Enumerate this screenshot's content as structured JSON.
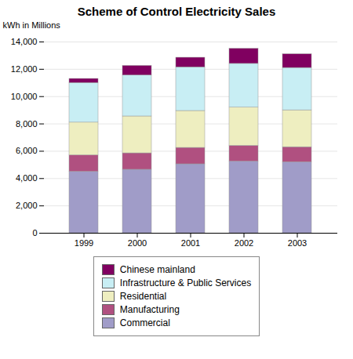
{
  "chart_data": {
    "type": "bar",
    "stacked": true,
    "title": "Scheme of Control Electricity Sales",
    "ylabel": "kWh in Millions",
    "categories": [
      "1999",
      "2000",
      "2001",
      "2002",
      "2003"
    ],
    "series": [
      {
        "name": "Commercial",
        "color": "#a09cc8",
        "values": [
          4500,
          4650,
          5050,
          5250,
          5200
        ]
      },
      {
        "name": "Manufacturing",
        "color": "#b05080",
        "values": [
          1200,
          1200,
          1200,
          1150,
          1100
        ]
      },
      {
        "name": "Residential",
        "color": "#eeeec0",
        "values": [
          2400,
          2700,
          2700,
          2800,
          2700
        ]
      },
      {
        "name": "Infrastructure & Public Services",
        "color": "#c8eef4",
        "values": [
          2900,
          3000,
          3200,
          3200,
          3100
        ]
      },
      {
        "name": "Chinese mainland",
        "color": "#800060",
        "values": [
          300,
          700,
          700,
          1100,
          1000
        ]
      }
    ],
    "ylim": [
      0,
      14000
    ],
    "yticks": [
      0,
      {
        "value": 2000,
        "label": "2,000"
      },
      {
        "value": 4000,
        "label": "4,000"
      },
      {
        "value": 6000,
        "label": "6,000"
      },
      {
        "value": 8000,
        "label": "8,000"
      },
      {
        "value": 10000,
        "label": "10,000"
      },
      {
        "value": 12000,
        "label": "12,000"
      },
      {
        "value": 14000,
        "label": "14,000"
      }
    ],
    "grid": true,
    "legend": "bottom"
  }
}
